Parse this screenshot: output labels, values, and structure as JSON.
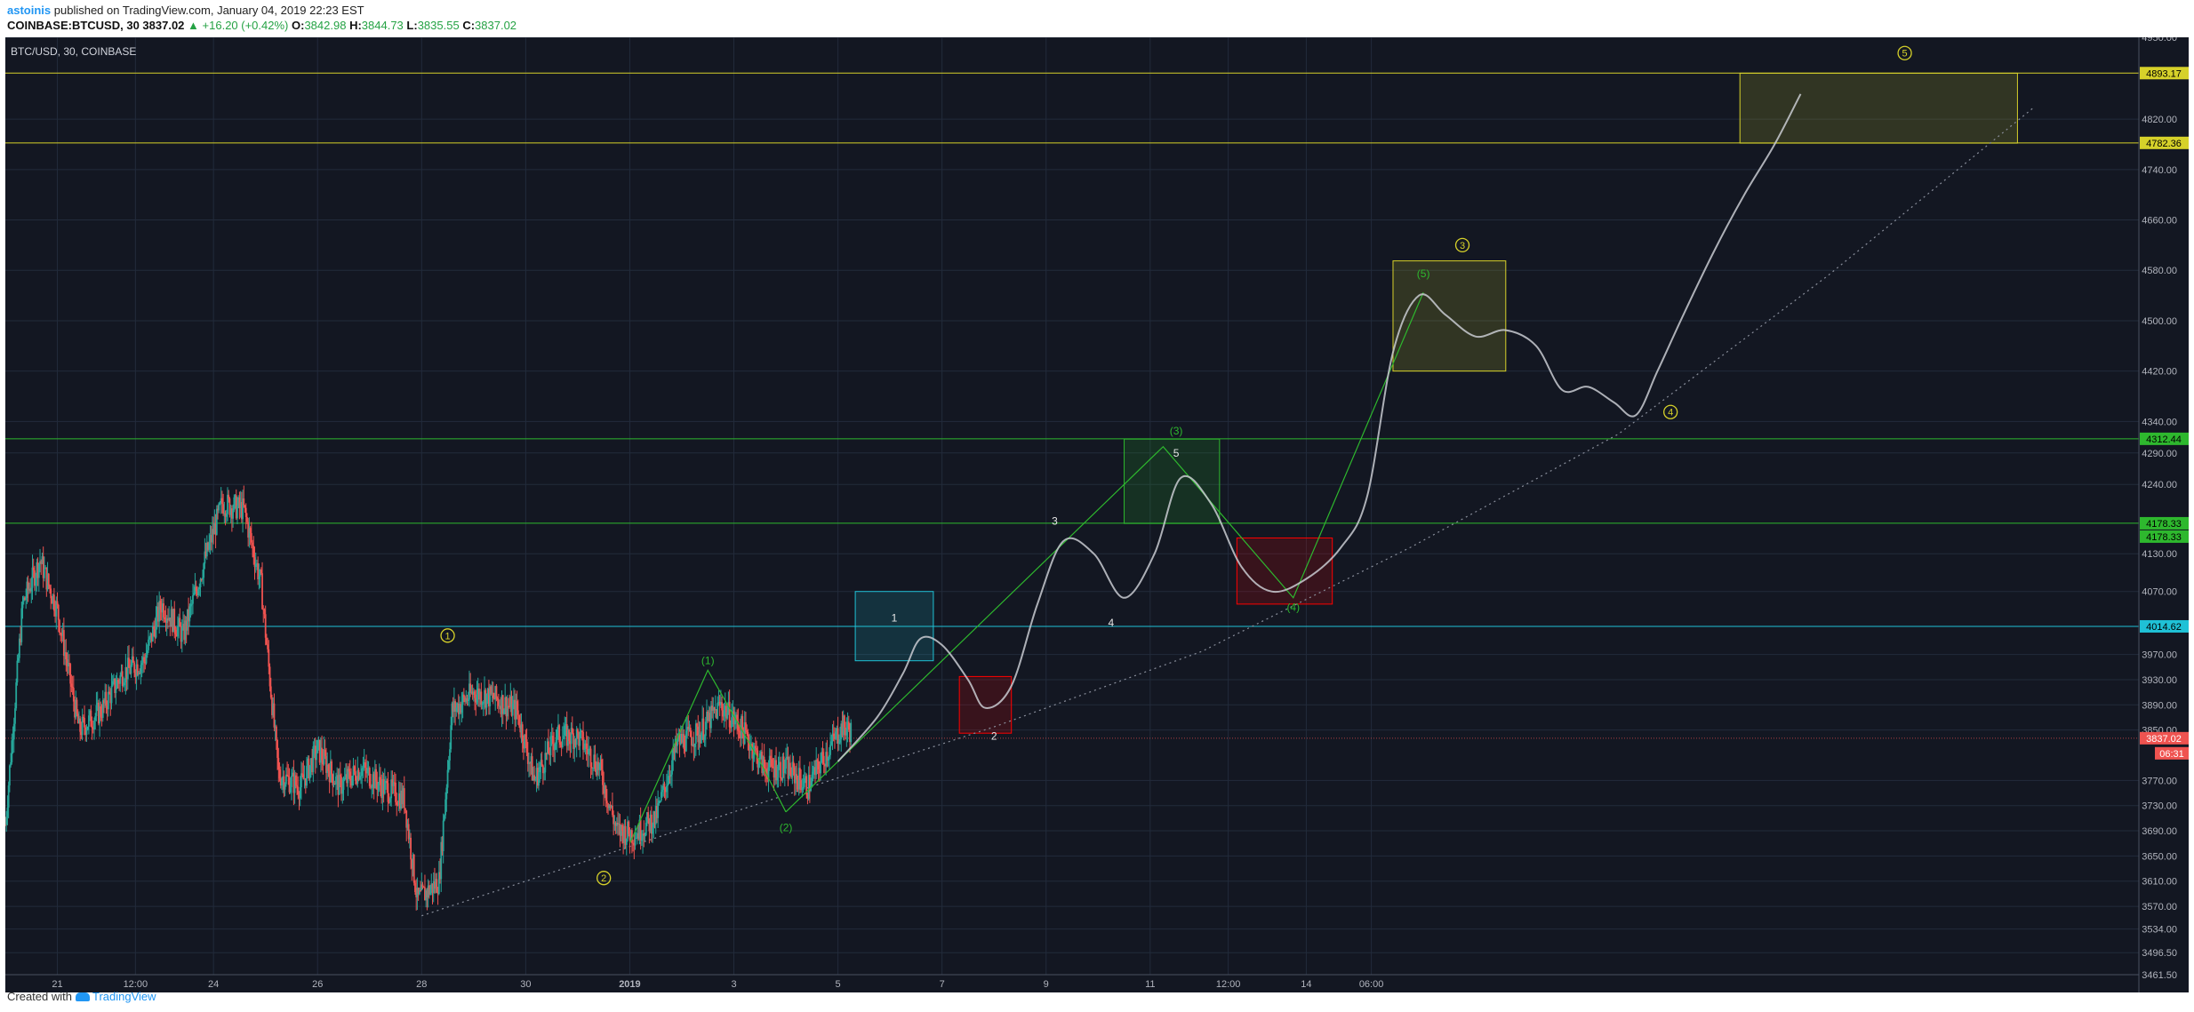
{
  "header": {
    "author": "astoinis",
    "published": "published on TradingView.com, January 04, 2019 22:23 EST",
    "symbol": "COINBASE:BTCUSD, 30",
    "last": "3837.02",
    "change": "▲ +16.20 (+0.42%)",
    "o_label": "O:",
    "o": "3842.98",
    "h_label": "H:",
    "h": "3844.73",
    "l_label": "L:",
    "l": "3835.55",
    "c_label": "C:",
    "c": "3837.02"
  },
  "footer": {
    "created_with": "Created with",
    "brand": "TradingView"
  },
  "colors": {
    "background": "#131722",
    "grid": "#222b3b",
    "up": "#26a69a",
    "down": "#ef5350",
    "yellow": "#d6d12a",
    "green": "#2eb82e",
    "cyan": "#1fc1d6",
    "projection": "#c9cbd1"
  },
  "chart_data": {
    "type": "candlestick",
    "title": "BTC/USD, 30, COINBASE",
    "x_ticks": [
      "21",
      "12:00",
      "24",
      "26",
      "28",
      "30",
      "2019",
      "3",
      "5",
      "7",
      "9",
      "11",
      "12:00",
      "14",
      "06:00"
    ],
    "y_ticks": [
      "4950.00",
      "4820.00",
      "4740.00",
      "4660.00",
      "4580.00",
      "4500.00",
      "4420.00",
      "4340.00",
      "4290.00",
      "4240.00",
      "4130.00",
      "4070.00",
      "3970.00",
      "3930.00",
      "3890.00",
      "3850.00",
      "3770.00",
      "3730.00",
      "3690.00",
      "3650.00",
      "3610.00",
      "3570.00",
      "3534.00",
      "3496.50",
      "3461.50"
    ],
    "ylim": [
      3461.5,
      4950
    ],
    "current_price": "3837.02",
    "countdown": "06:31",
    "price_path": [
      [
        "2018-12-20 00:00",
        3700
      ],
      [
        "2018-12-20 08:00",
        4050
      ],
      [
        "2018-12-20 16:00",
        4120
      ],
      [
        "2018-12-21 00:00",
        4040
      ],
      [
        "2018-12-21 10:00",
        3850
      ],
      [
        "2018-12-21 20:00",
        3880
      ],
      [
        "2018-12-22 06:00",
        3940
      ],
      [
        "2018-12-22 16:00",
        3960
      ],
      [
        "2018-12-23 00:00",
        4050
      ],
      [
        "2018-12-23 10:00",
        4000
      ],
      [
        "2018-12-23 20:00",
        4120
      ],
      [
        "2018-12-24 04:00",
        4210
      ],
      [
        "2018-12-24 14:00",
        4200
      ],
      [
        "2018-12-24 22:00",
        4080
      ],
      [
        "2018-12-25 06:00",
        3780
      ],
      [
        "2018-12-25 16:00",
        3760
      ],
      [
        "2018-12-26 00:00",
        3820
      ],
      [
        "2018-12-26 10:00",
        3760
      ],
      [
        "2018-12-26 20:00",
        3790
      ],
      [
        "2018-12-27 06:00",
        3760
      ],
      [
        "2018-12-27 16:00",
        3740
      ],
      [
        "2018-12-27 22:00",
        3580
      ],
      [
        "2018-12-28 08:00",
        3610
      ],
      [
        "2018-12-28 14:00",
        3880
      ],
      [
        "2018-12-29 00:00",
        3910
      ],
      [
        "2018-12-29 10:00",
        3900
      ],
      [
        "2018-12-29 20:00",
        3880
      ],
      [
        "2018-12-30 04:00",
        3770
      ],
      [
        "2018-12-30 14:00",
        3840
      ],
      [
        "2018-12-31 00:00",
        3840
      ],
      [
        "2018-12-31 10:00",
        3790
      ],
      [
        "2018-12-31 18:00",
        3690
      ],
      [
        "2019-01-01 02:00",
        3685
      ],
      [
        "2019-01-01 12:00",
        3710
      ],
      [
        "2019-01-01 22:00",
        3830
      ],
      [
        "2019-01-02 08:00",
        3845
      ],
      [
        "2019-01-02 18:00",
        3890
      ],
      [
        "2019-01-03 04:00",
        3850
      ],
      [
        "2019-01-03 14:00",
        3790
      ],
      [
        "2019-01-04 00:00",
        3790
      ],
      [
        "2019-01-04 10:00",
        3760
      ],
      [
        "2019-01-04 18:00",
        3810
      ],
      [
        "2019-01-05 02:00",
        3855
      ],
      [
        "2019-01-05 06:00",
        3848
      ]
    ],
    "projection_path": [
      [
        "2019-01-05 00:00",
        3800
      ],
      [
        "2019-01-05 18:00",
        3870
      ],
      [
        "2019-01-06 06:00",
        3940
      ],
      [
        "2019-01-06 14:00",
        3995
      ],
      [
        "2019-01-07 00:00",
        3985
      ],
      [
        "2019-01-07 12:00",
        3930
      ],
      [
        "2019-01-07 20:00",
        3885
      ],
      [
        "2019-01-08 08:00",
        3920
      ],
      [
        "2019-01-08 20:00",
        4050
      ],
      [
        "2019-01-09 08:00",
        4150
      ],
      [
        "2019-01-09 22:00",
        4130
      ],
      [
        "2019-01-10 12:00",
        4060
      ],
      [
        "2019-01-11 02:00",
        4130
      ],
      [
        "2019-01-11 14:00",
        4250
      ],
      [
        "2019-01-12 04:00",
        4210
      ],
      [
        "2019-01-12 18:00",
        4110
      ],
      [
        "2019-01-13 08:00",
        4070
      ],
      [
        "2019-01-14 00:00",
        4090
      ],
      [
        "2019-01-14 16:00",
        4140
      ],
      [
        "2019-01-15 04:00",
        4220
      ],
      [
        "2019-01-15 16:00",
        4450
      ],
      [
        "2019-01-16 04:00",
        4540
      ],
      [
        "2019-01-16 16:00",
        4510
      ],
      [
        "2019-01-17 06:00",
        4475
      ],
      [
        "2019-01-17 20:00",
        4485
      ],
      [
        "2019-01-18 10:00",
        4460
      ],
      [
        "2019-01-18 22:00",
        4390
      ],
      [
        "2019-01-19 10:00",
        4395
      ],
      [
        "2019-01-19 22:00",
        4370
      ],
      [
        "2019-01-20 08:00",
        4350
      ],
      [
        "2019-01-20 18:00",
        4420
      ],
      [
        "2019-01-21 06:00",
        4510
      ],
      [
        "2019-01-21 20:00",
        4610
      ],
      [
        "2019-01-22 10:00",
        4700
      ],
      [
        "2019-01-23 00:00",
        4780
      ],
      [
        "2019-01-23 12:00",
        4860
      ]
    ],
    "horizontal_levels": [
      {
        "price": 4893.17,
        "label": "4893.17",
        "color": "yellow"
      },
      {
        "price": 4782.36,
        "label": "4782.36",
        "color": "yellow"
      },
      {
        "price": 4312.44,
        "label": "4312.44",
        "color": "green"
      },
      {
        "price": 4178.33,
        "label": "4178.33",
        "color": "green"
      },
      {
        "price": 4014.62,
        "label": "4014.62",
        "color": "cyan"
      }
    ],
    "extra_axis_label": "4178.33",
    "zones": [
      {
        "t1": "2019-01-05 08:00",
        "t2": "2019-01-06 20:00",
        "p1": 3960,
        "p2": 4070,
        "color": "cyan"
      },
      {
        "t1": "2019-01-07 08:00",
        "t2": "2019-01-08 08:00",
        "p1": 3845,
        "p2": 3935,
        "color": "red"
      },
      {
        "t1": "2019-01-10 12:00",
        "t2": "2019-01-12 08:00",
        "p1": 4178,
        "p2": 4312,
        "color": "green"
      },
      {
        "t1": "2019-01-12 16:00",
        "t2": "2019-01-14 12:00",
        "p1": 4050,
        "p2": 4155,
        "color": "red"
      },
      {
        "t1": "2019-01-15 16:00",
        "t2": "2019-01-17 20:00",
        "p1": 4420,
        "p2": 4595,
        "color": "yellow"
      },
      {
        "t1": "2019-01-22 08:00",
        "t2": "2019-01-27 16:00",
        "p1": 4782,
        "p2": 4893,
        "color": "yellow"
      }
    ],
    "wave_lines": [
      {
        "color": "green",
        "points": [
          [
            "2019-01-01 00:00",
            3670
          ],
          [
            "2019-01-02 12:00",
            3945
          ],
          [
            "2019-01-03 12:00",
            3800
          ],
          [
            "2019-01-04 00:00",
            3720
          ]
        ]
      },
      {
        "color": "green",
        "points": [
          [
            "2019-01-04 00:00",
            3720
          ],
          [
            "2019-01-11 06:00",
            4300
          ],
          [
            "2019-01-13 18:00",
            4060
          ],
          [
            "2019-01-16 06:00",
            4545
          ]
        ]
      }
    ],
    "trendline": {
      "style": "dotted",
      "points": [
        [
          "2018-12-28 00:00",
          3555
        ],
        [
          "2019-01-03 00:00",
          3720
        ],
        [
          "2019-01-08 00:00",
          3855
        ],
        [
          "2019-01-12 00:00",
          3975
        ],
        [
          "2019-01-16 00:00",
          4140
        ],
        [
          "2019-01-20 00:00",
          4320
        ],
        [
          "2019-01-24 00:00",
          4570
        ],
        [
          "2019-01-28 00:00",
          4840
        ]
      ]
    },
    "annotations": [
      {
        "text": "1",
        "t": "2018-12-28 12:00",
        "p": 4000,
        "style": "circle-yellow"
      },
      {
        "text": "2",
        "t": "2018-12-31 12:00",
        "p": 3615,
        "style": "circle-yellow"
      },
      {
        "text": "3",
        "t": "2019-01-17 00:00",
        "p": 4620,
        "style": "circle-yellow"
      },
      {
        "text": "4",
        "t": "2019-01-21 00:00",
        "p": 4355,
        "style": "circle-yellow"
      },
      {
        "text": "5",
        "t": "2019-01-25 12:00",
        "p": 4925,
        "style": "circle-yellow"
      },
      {
        "text": "(1)",
        "t": "2019-01-02 12:00",
        "p": 3960,
        "style": "green"
      },
      {
        "text": "(2)",
        "t": "2019-01-04 00:00",
        "p": 3695,
        "style": "green"
      },
      {
        "text": "(3)",
        "t": "2019-01-11 12:00",
        "p": 4325,
        "style": "green"
      },
      {
        "text": "(4)",
        "t": "2019-01-13 18:00",
        "p": 4045,
        "style": "green"
      },
      {
        "text": "(5)",
        "t": "2019-01-16 06:00",
        "p": 4575,
        "style": "green"
      },
      {
        "text": "1",
        "t": "2019-01-06 02:00",
        "p": 4028,
        "style": "white"
      },
      {
        "text": "2",
        "t": "2019-01-08 00:00",
        "p": 3840,
        "style": "white"
      },
      {
        "text": "3",
        "t": "2019-01-09 04:00",
        "p": 4182,
        "style": "white"
      },
      {
        "text": "4",
        "t": "2019-01-10 06:00",
        "p": 4020,
        "style": "white"
      },
      {
        "text": "5",
        "t": "2019-01-11 12:00",
        "p": 4290,
        "style": "white"
      }
    ]
  }
}
